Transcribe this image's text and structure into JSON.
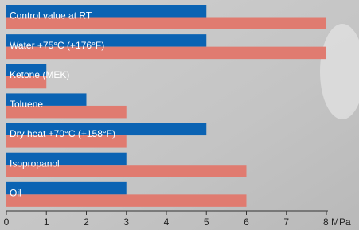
{
  "chart_data": {
    "type": "hbar",
    "categories": [
      "Control value at RT",
      "Water +75°C (+176°F)",
      "Ketone (MEK)",
      "Toluene",
      "Dry heat +70°C (+158°F)",
      "Isopropanol",
      "Oil"
    ],
    "series": [
      {
        "color": "#0b63b3",
        "values": [
          5,
          5,
          1,
          2,
          5,
          3,
          3
        ]
      },
      {
        "color": "#e07b70",
        "values": [
          8,
          8,
          1,
          3,
          3,
          6,
          6
        ]
      }
    ],
    "xlim": [
      0,
      8
    ],
    "xticks": [
      0,
      1,
      2,
      3,
      4,
      5,
      6,
      7,
      {
        "value": 8,
        "label": "8 MPa"
      }
    ]
  }
}
